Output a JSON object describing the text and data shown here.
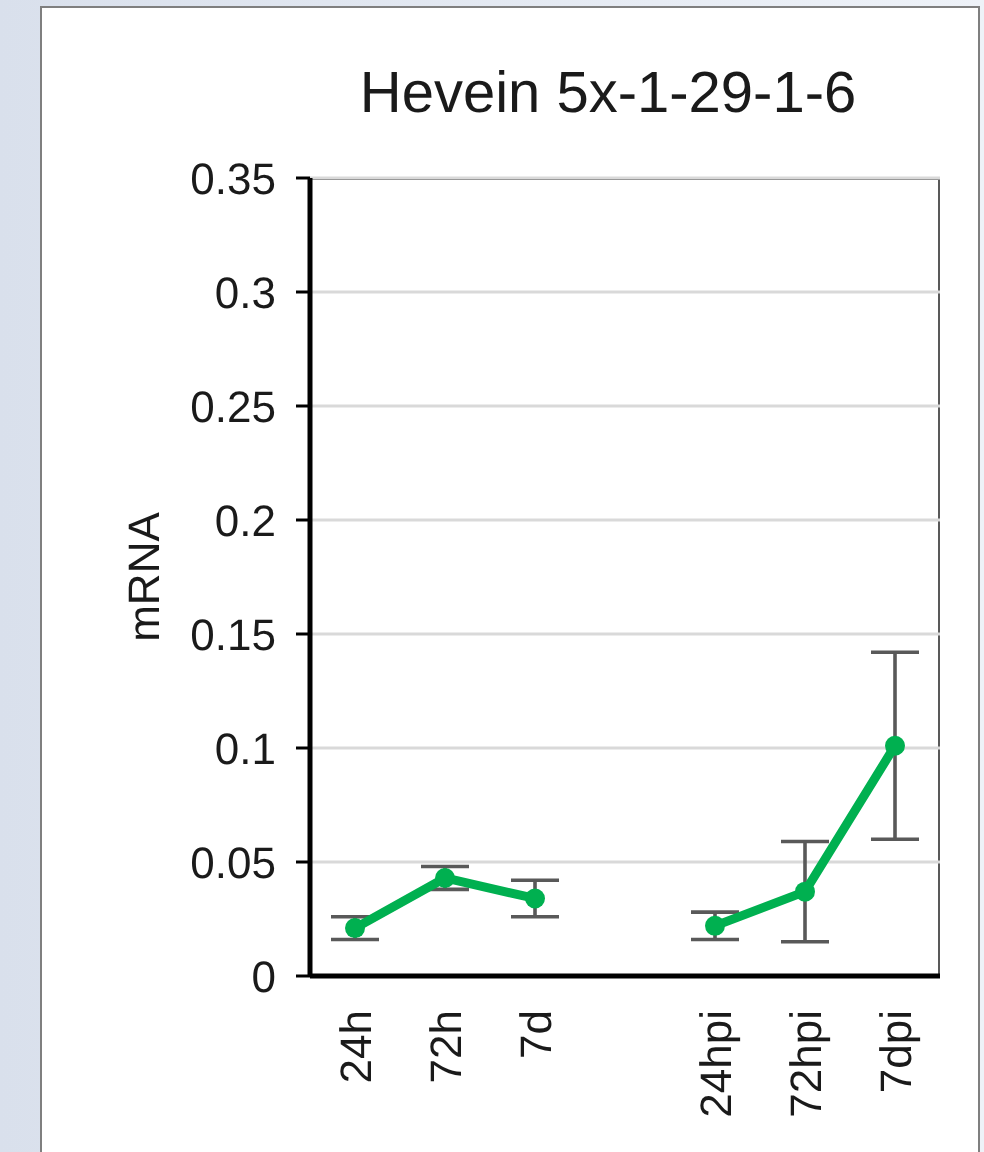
{
  "chart_data": {
    "type": "line",
    "title": "Hevein 5x-1-29-1-6",
    "ylabel": "mRNA",
    "categories": [
      "24h",
      "72h",
      "7d",
      null,
      "24hpi",
      "72hpi",
      "7dpi"
    ],
    "values": [
      0.021,
      0.043,
      0.034,
      null,
      0.022,
      0.037,
      0.101
    ],
    "color": "#00b050",
    "errors": [
      0.005,
      0.005,
      0.008,
      null,
      0.006,
      0.022,
      0.041
    ],
    "ylim": [
      0,
      0.35
    ],
    "yticks": [
      0,
      0.05,
      0.1,
      0.15,
      0.2,
      0.25,
      0.3,
      0.35
    ],
    "grid": "y",
    "marker": "circle"
  }
}
